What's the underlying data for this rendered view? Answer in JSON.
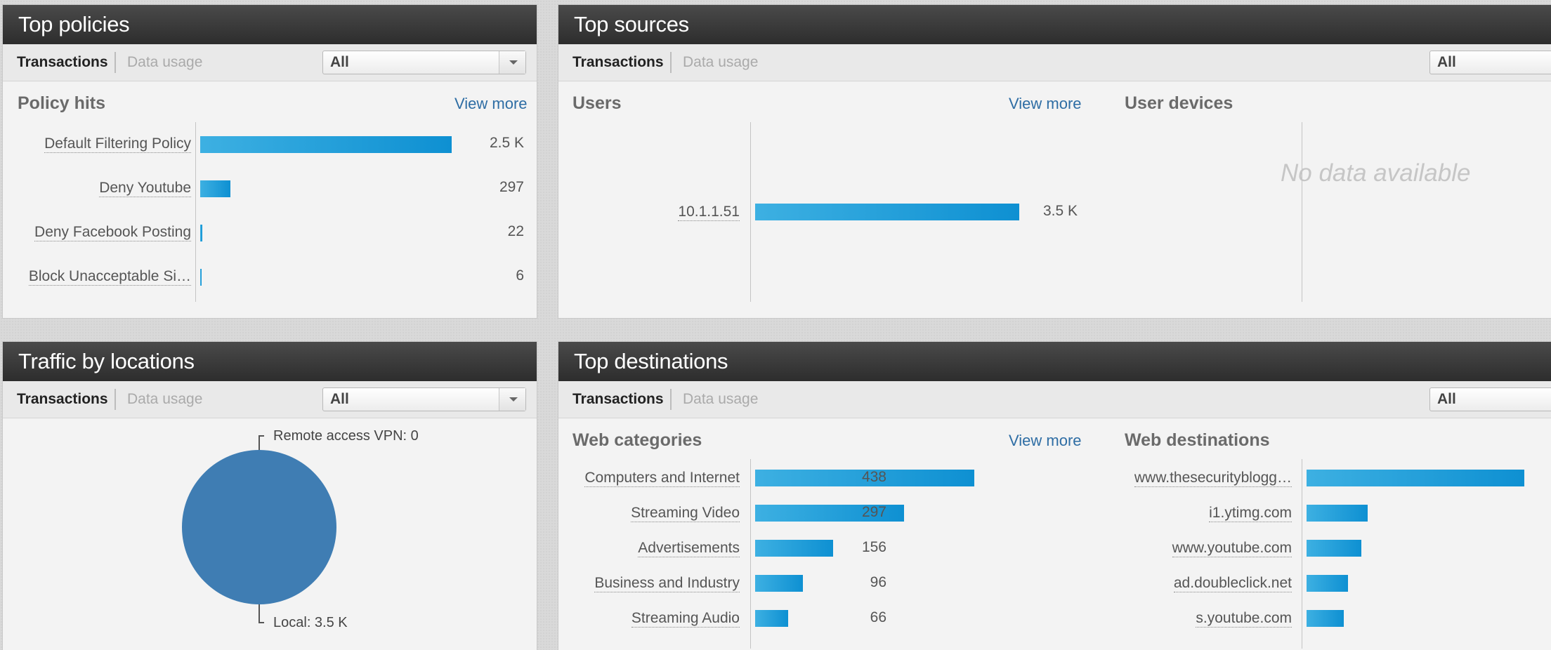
{
  "tabs": {
    "transactions": "Transactions",
    "data_usage": "Data usage"
  },
  "dropdown_value": "All",
  "view_more": "View more",
  "top_policies": {
    "title": "Top policies",
    "section": "Policy hits",
    "rows": [
      {
        "label": "Default Filtering Policy",
        "value": "2.5 K",
        "fraction": 1.0
      },
      {
        "label": "Deny Youtube",
        "value": "297",
        "fraction": 0.119
      },
      {
        "label": "Deny Facebook Posting",
        "value": "22",
        "fraction": 0.009
      },
      {
        "label": "Block Unacceptable Si…",
        "value": "6",
        "fraction": 0.0
      }
    ]
  },
  "top_sources": {
    "title": "Top sources",
    "users": {
      "section": "Users",
      "rows": [
        {
          "label": "10.1.1.51",
          "value": "3.5 K",
          "fraction": 1.0
        }
      ]
    },
    "user_devices": {
      "section": "User devices",
      "empty_text": "No data available"
    }
  },
  "traffic_by_locations": {
    "title": "Traffic by locations",
    "pie_color": "#3f7db3",
    "slices": [
      {
        "label": "Remote access VPN: 0",
        "value": 0
      },
      {
        "label": "Local: 3.5 K",
        "value": 3500
      }
    ]
  },
  "top_destinations": {
    "title": "Top destinations",
    "web_categories": {
      "section": "Web categories",
      "rows": [
        {
          "label": "Computers and Internet",
          "value": "438",
          "fraction": 1.0
        },
        {
          "label": "Streaming Video",
          "value": "297",
          "fraction": 0.678
        },
        {
          "label": "Advertisements",
          "value": "156",
          "fraction": 0.356
        },
        {
          "label": "Business and Industry",
          "value": "96",
          "fraction": 0.219
        },
        {
          "label": "Streaming Audio",
          "value": "66",
          "fraction": 0.151
        }
      ]
    },
    "web_destinations": {
      "section": "Web destinations",
      "rows": [
        {
          "label": "www.thesecurityblogg…",
          "fraction": 1.0
        },
        {
          "label": "i1.ytimg.com",
          "fraction": 0.28
        },
        {
          "label": "www.youtube.com",
          "fraction": 0.25
        },
        {
          "label": "ad.doubleclick.net",
          "fraction": 0.19
        },
        {
          "label": "s.youtube.com",
          "fraction": 0.17
        }
      ]
    }
  },
  "colors": {
    "bar_start": "#3db0e2",
    "bar_end": "#0e90d2",
    "link": "#2e6da4",
    "header": "#333333"
  }
}
